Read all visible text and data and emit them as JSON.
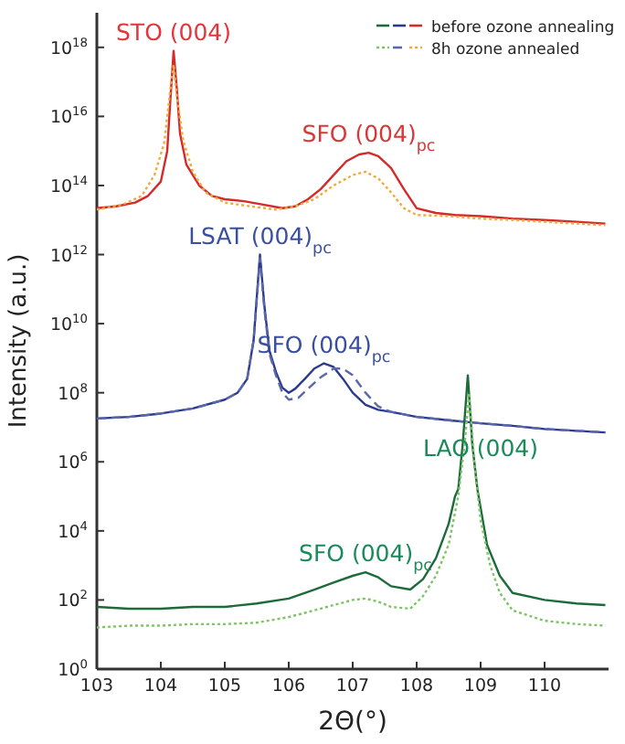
{
  "chart_data": {
    "type": "line",
    "xlabel": "2Θ(°)",
    "ylabel": "Intensity (a.u.)",
    "log": "y",
    "xlim": [
      103,
      111
    ],
    "xticks": [
      103,
      104,
      105,
      106,
      107,
      108,
      109,
      110
    ],
    "ylim": [
      1,
      1e+19
    ],
    "yticks": [
      {
        "value": 1,
        "label": "10$^{0}$"
      },
      {
        "value": 100,
        "label": "10$^{2}$"
      },
      {
        "value": 10000,
        "label": "10$^{4}$"
      },
      {
        "value": 1000000,
        "label": "10$^{6}$"
      },
      {
        "value": 100000000,
        "label": "10$^{8}$"
      },
      {
        "value": 10000000000,
        "label": "10$^{10}$"
      },
      {
        "value": 1000000000000,
        "label": "10$^{12}$"
      },
      {
        "value": 100000000000000,
        "label": "10$^{14}$"
      },
      {
        "value": 10000000000000000,
        "label": "10$^{16}$"
      },
      {
        "value": 1000000000000000000,
        "label": "10$^{18}$"
      }
    ],
    "legend": "top right",
    "grid": false,
    "series": [
      {
        "name": "before ozone annealing",
        "color": "#d42a2a",
        "line_style": "solid",
        "x": [
          103,
          103.3,
          103.6,
          103.8,
          104.0,
          104.1,
          104.15,
          104.2,
          104.25,
          104.3,
          104.4,
          104.6,
          104.8,
          105.0,
          105.3,
          105.6,
          105.9,
          106.1,
          106.3,
          106.5,
          106.7,
          106.9,
          107.1,
          107.25,
          107.4,
          107.6,
          107.8,
          108.0,
          108.3,
          108.6,
          109,
          109.5,
          110,
          110.5,
          110.95
        ],
        "values": [
          22000000000000.0,
          25000000000000.0,
          32000000000000.0,
          50000000000000.0,
          130000000000000.0,
          1000000000000000.0,
          3.2e+16,
          7.9e+17,
          6.3e+16,
          3200000000000000.0,
          400000000000000.0,
          100000000000000.0,
          50000000000000.0,
          40000000000000.0,
          35000000000000.0,
          28000000000000.0,
          22000000000000.0,
          25000000000000.0,
          40000000000000.0,
          79000000000000.0,
          200000000000000.0,
          500000000000000.0,
          790000000000000.0,
          890000000000000.0,
          710000000000000.0,
          320000000000000.0,
          79000000000000.0,
          22000000000000.0,
          16000000000000.0,
          14000000000000.0,
          13000000000000.0,
          11000000000000.0,
          10000000000000.0,
          8900000000000.0,
          7900000000000.0
        ]
      },
      {
        "name": "8h ozone annealed",
        "color": "#f2a93b",
        "line_style": "dotted",
        "x": [
          103,
          103.4,
          103.7,
          103.9,
          104.05,
          104.15,
          104.2,
          104.25,
          104.35,
          104.5,
          104.7,
          105,
          105.4,
          105.8,
          106.1,
          106.4,
          106.7,
          107.0,
          107.2,
          107.4,
          107.6,
          107.8,
          108.0,
          108.5,
          109,
          109.5,
          110,
          110.5,
          110.95
        ],
        "values": [
          20000000000000.0,
          28000000000000.0,
          50000000000000.0,
          200000000000000.0,
          1600000000000000.0,
          6.3e+16,
          3.2e+17,
          4e+16,
          2000000000000000.0,
          250000000000000.0,
          63000000000000.0,
          32000000000000.0,
          25000000000000.0,
          20000000000000.0,
          25000000000000.0,
          40000000000000.0,
          100000000000000.0,
          200000000000000.0,
          250000000000000.0,
          160000000000000.0,
          63000000000000.0,
          22000000000000.0,
          14000000000000.0,
          13000000000000.0,
          11000000000000.0,
          10000000000000.0,
          8900000000000.0,
          7900000000000.0,
          7100000000000.0
        ]
      },
      {
        "color": "#2a3a8f",
        "line_style": "solid",
        "x": [
          103,
          103.5,
          104,
          104.5,
          105,
          105.2,
          105.35,
          105.45,
          105.55,
          105.62,
          105.7,
          105.8,
          105.9,
          106.0,
          106.1,
          106.25,
          106.4,
          106.55,
          106.7,
          106.85,
          107.0,
          107.2,
          107.4,
          107.6,
          108,
          108.5,
          109,
          109.5,
          110,
          110.5,
          110.95
        ],
        "values": [
          18000000.0,
          20000000.0,
          25000000.0,
          35000000.0,
          63000000.0,
          100000000.0,
          250000000.0,
          3200000000.0,
          1000000000000.0,
          32000000000.0,
          1600000000.0,
          400000000.0,
          140000000.0,
          100000000.0,
          130000000.0,
          250000000.0,
          500000000.0,
          710000000.0,
          560000000.0,
          250000000.0,
          100000000.0,
          45000000.0,
          32000000.0,
          28000000.0,
          20000000.0,
          16000000.0,
          13000000.0,
          11000000.0,
          8900000.0,
          7900000.0,
          7100000.0
        ]
      },
      {
        "color": "#5b68a8",
        "line_style": "dashed",
        "x": [
          103,
          103.5,
          104,
          104.5,
          105,
          105.2,
          105.35,
          105.45,
          105.55,
          105.62,
          105.7,
          105.8,
          105.9,
          106.0,
          106.15,
          106.3,
          106.5,
          106.7,
          106.85,
          107.0,
          107.2,
          107.4,
          107.6,
          108,
          108.5,
          109,
          109.5,
          110,
          110.5,
          110.95
        ],
        "values": [
          18000000.0,
          20000000.0,
          25000000.0,
          35000000.0,
          63000000.0,
          100000000.0,
          250000000.0,
          3200000000.0,
          790000000000.0,
          25000000000.0,
          1300000000.0,
          320000000.0,
          100000000.0,
          63000000.0,
          71000000.0,
          130000000.0,
          280000000.0,
          500000000.0,
          500000000.0,
          320000000.0,
          100000000.0,
          40000000.0,
          28000000.0,
          20000000.0,
          16000000.0,
          13000000.0,
          11000000.0,
          8900000.0,
          7900000.0,
          7100000.0
        ]
      },
      {
        "color": "#1d6b3b",
        "line_style": "solid",
        "x": [
          103,
          103.5,
          104,
          104.5,
          105,
          105.5,
          106,
          106.4,
          106.7,
          107.0,
          107.2,
          107.4,
          107.6,
          107.9,
          108.1,
          108.3,
          108.5,
          108.6,
          108.65,
          108.72,
          108.8,
          108.87,
          108.95,
          109.1,
          109.3,
          109.5,
          110,
          110.5,
          110.95
        ],
        "values": [
          63,
          56,
          56,
          63,
          63,
          79,
          110,
          200,
          320,
          500,
          630,
          450,
          250,
          200,
          400,
          1600,
          16000,
          100000,
          160000,
          3200000,
          320000000,
          3200000,
          160000,
          4000,
          500,
          160,
          100,
          79,
          71
        ]
      },
      {
        "color": "#7cc464",
        "line_style": "dotted",
        "x": [
          103,
          103.5,
          104,
          104.5,
          105,
          105.5,
          106,
          106.4,
          106.7,
          107.0,
          107.2,
          107.4,
          107.6,
          107.9,
          108.1,
          108.3,
          108.5,
          108.65,
          108.75,
          108.82,
          108.9,
          109.0,
          109.15,
          109.3,
          109.5,
          110,
          110.5,
          110.95
        ],
        "values": [
          16,
          18,
          18,
          20,
          20,
          22,
          32,
          50,
          71,
          100,
          110,
          89,
          63,
          56,
          130,
          500,
          4000,
          100000,
          3200000,
          100000000,
          1000000,
          20000,
          1000,
          160,
          50,
          25,
          20,
          18
        ]
      }
    ],
    "annotations": [
      {
        "text": "STO (004)",
        "x": 104.2,
        "y": 7.9e+17
      },
      {
        "text": "SFO (004)$_{pc}$",
        "x": 107.25,
        "y": 890000000000000.0
      },
      {
        "text": "LSAT (004)$_{pc}$",
        "x": 105.55,
        "y": 1000000000000.0
      },
      {
        "text": "SFO (004)$_{pc}$",
        "x": 106.55,
        "y": 710000000.0
      },
      {
        "text": "LAO (004)",
        "x": 109.0,
        "y": 700000.0
      },
      {
        "text": "SFO (004)$_{pc}$",
        "x": 107.2,
        "y": 630
      }
    ]
  }
}
